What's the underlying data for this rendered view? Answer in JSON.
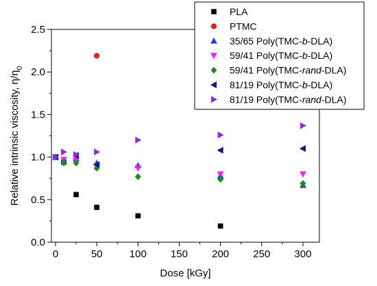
{
  "chart_data": {
    "type": "scatter",
    "xlabel_text": "Dose",
    "xlabel_unit": "[kGy]",
    "ylabel_main": "Relative intrinsic viscosity, η/η",
    "ylabel_sub": "0",
    "xlim": [
      -5,
      320
    ],
    "ylim": [
      0,
      2.5
    ],
    "x_ticks": [
      0,
      50,
      100,
      150,
      200,
      250,
      300
    ],
    "y_ticks": [
      0.0,
      0.5,
      1.0,
      1.5,
      2.0,
      2.5
    ],
    "y_tick_labels": [
      "0.0",
      "0.5",
      "1.0",
      "1.5",
      "2.0",
      "2.5"
    ],
    "legend_position": "top-right",
    "grid": false,
    "series": [
      {
        "key": "pla",
        "label": [
          {
            "t": "PLA",
            "i": false
          }
        ],
        "marker": "square",
        "color": "#000000",
        "points": [
          [
            0,
            1.0
          ],
          [
            10,
            0.94
          ],
          [
            25,
            0.56
          ],
          [
            50,
            0.41
          ],
          [
            100,
            0.31
          ],
          [
            200,
            0.19
          ]
        ]
      },
      {
        "key": "ptmc",
        "label": [
          {
            "t": "PTMC",
            "i": false
          }
        ],
        "marker": "circle",
        "color": "#e8201c",
        "points": [
          [
            50,
            2.19
          ]
        ]
      },
      {
        "key": "s3565b",
        "label": [
          {
            "t": "35/65  Poly(TMC-",
            "i": false
          },
          {
            "t": "b",
            "i": true
          },
          {
            "t": "-DLA)",
            "i": false
          }
        ],
        "marker": "triangle-up",
        "color": "#1f3fe0",
        "points": [
          [
            0,
            1.0
          ],
          [
            10,
            0.96
          ],
          [
            25,
            0.98
          ],
          [
            50,
            0.93
          ],
          [
            100,
            0.9
          ],
          [
            200,
            0.78
          ],
          [
            300,
            0.67
          ]
        ]
      },
      {
        "key": "s5941b",
        "label": [
          {
            "t": "59/41  Poly(TMC-",
            "i": false
          },
          {
            "t": "b",
            "i": true
          },
          {
            "t": "-DLA)",
            "i": false
          }
        ],
        "marker": "triangle-down",
        "color": "#ee22ee",
        "points": [
          [
            0,
            1.0
          ],
          [
            10,
            0.97
          ],
          [
            25,
            0.96
          ],
          [
            50,
            0.9
          ],
          [
            100,
            0.87
          ],
          [
            200,
            0.8
          ],
          [
            300,
            0.8
          ]
        ]
      },
      {
        "key": "s5941rand",
        "label": [
          {
            "t": "59/41  Poly(TMC-",
            "i": false
          },
          {
            "t": "rand",
            "i": true
          },
          {
            "t": "-DLA)",
            "i": false
          }
        ],
        "marker": "diamond",
        "color": "#1a8a1a",
        "points": [
          [
            0,
            1.0
          ],
          [
            10,
            0.93
          ],
          [
            25,
            0.93
          ],
          [
            50,
            0.87
          ],
          [
            100,
            0.77
          ],
          [
            200,
            0.74
          ],
          [
            300,
            0.69
          ]
        ]
      },
      {
        "key": "s8119b",
        "label": [
          {
            "t": "81/19  Poly(TMC-",
            "i": false
          },
          {
            "t": "b",
            "i": true
          },
          {
            "t": "-DLA)",
            "i": false
          }
        ],
        "marker": "triangle-left",
        "color": "#0a1a80",
        "points": [
          [
            0,
            1.0
          ],
          [
            25,
            1.02
          ],
          [
            50,
            0.91
          ],
          [
            200,
            1.08
          ],
          [
            300,
            1.1
          ]
        ]
      },
      {
        "key": "s8119rand",
        "label": [
          {
            "t": "81/19  Poly(TMC-",
            "i": false
          },
          {
            "t": "rand",
            "i": true
          },
          {
            "t": "-DLA)",
            "i": false
          }
        ],
        "marker": "triangle-right",
        "color": "#8a2be2",
        "points": [
          [
            0,
            1.0
          ],
          [
            10,
            1.06
          ],
          [
            25,
            1.03
          ],
          [
            50,
            1.06
          ],
          [
            100,
            1.2
          ],
          [
            200,
            1.26
          ],
          [
            300,
            1.37
          ]
        ]
      }
    ]
  }
}
